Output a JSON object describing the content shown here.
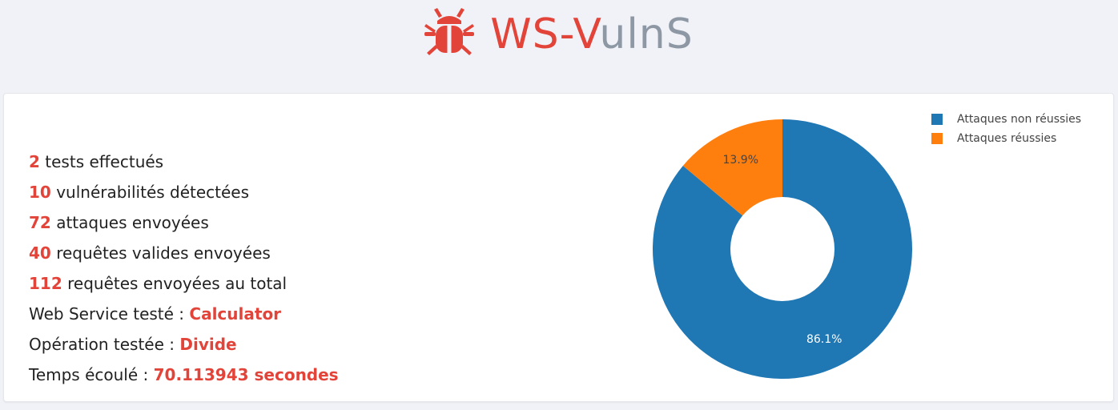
{
  "header": {
    "logo_icon": "bug-icon",
    "title_part1": "WS-V",
    "title_part2": "ulnS",
    "colors": {
      "accent": "#e2443a",
      "muted": "#8d98a4"
    }
  },
  "stats": [
    {
      "value": "2",
      "label": "tests effectués"
    },
    {
      "value": "10",
      "label": "vulnérabilités détectées"
    },
    {
      "value": "72",
      "label": "attaques envoyées"
    },
    {
      "value": "40",
      "label": "requêtes valides envoyées"
    },
    {
      "value": "112",
      "label": "requêtes envoyées au total"
    }
  ],
  "details": [
    {
      "label": "Web Service testé : ",
      "value": "Calculator"
    },
    {
      "label": "Opération testée : ",
      "value": "Divide"
    },
    {
      "label": "Temps écoulé : ",
      "value": "70.113943 secondes"
    }
  ],
  "chart_data": {
    "type": "pie",
    "donut": true,
    "legend_position": "top-right",
    "series": [
      {
        "name": "Attaques non réussies",
        "value": 86.1,
        "label": "86.1%",
        "color": "#1f77b4"
      },
      {
        "name": "Attaques réussies",
        "value": 13.9,
        "label": "13.9%",
        "color": "#ff7f0e"
      }
    ]
  }
}
